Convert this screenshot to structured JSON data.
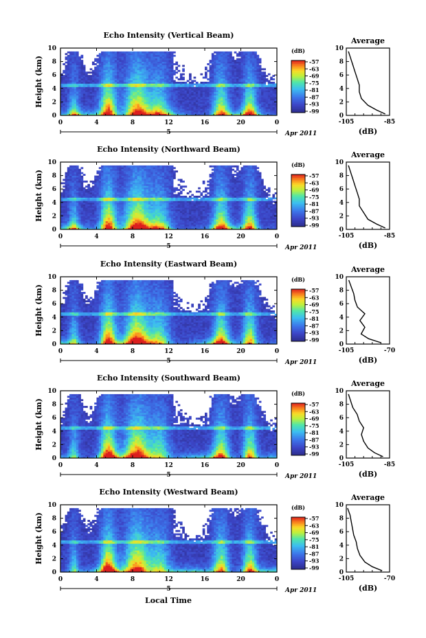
{
  "footer": {
    "xlabel": "Local Time"
  },
  "chart_data": [
    {
      "type": "heatmap",
      "title": "Echo Intensity (Vertical Beam)",
      "ylabel": "Height (km)",
      "x_ticks": [
        "0",
        "4",
        "8",
        "12",
        "16",
        "20",
        "0"
      ],
      "y_ticks": [
        "0",
        "2",
        "4",
        "6",
        "8",
        "10"
      ],
      "xlim": [
        0,
        24
      ],
      "ylim": [
        0,
        10
      ],
      "date_tick": "5",
      "date_label": "Apr 2011",
      "colorbar": {
        "unit": "(dB)",
        "ticks": [
          "-57",
          "-63",
          "-69",
          "-75",
          "-81",
          "-87",
          "-93",
          "-99"
        ]
      },
      "profile": {
        "title": "Average",
        "xlabel": "(dB)",
        "x_ticks": [
          "-105",
          "-85"
        ],
        "xlim": [
          -105,
          -85
        ],
        "heights": [
          0.2,
          0.8,
          1.5,
          2.5,
          3.5,
          4.5,
          5.5,
          6.5,
          7.5,
          8.5,
          9.5
        ],
        "values": [
          -87,
          -91,
          -95,
          -98,
          -99,
          -99,
          -100,
          -101,
          -102,
          -103,
          -104
        ]
      }
    },
    {
      "type": "heatmap",
      "title": "Echo Intensity (Northward Beam)",
      "ylabel": "Height (km)",
      "x_ticks": [
        "0",
        "4",
        "8",
        "12",
        "16",
        "20",
        "0"
      ],
      "y_ticks": [
        "0",
        "2",
        "4",
        "6",
        "8",
        "10"
      ],
      "xlim": [
        0,
        24
      ],
      "ylim": [
        0,
        10
      ],
      "date_tick": "5",
      "date_label": "Apr 2011",
      "colorbar": {
        "unit": "(dB)",
        "ticks": [
          "-57",
          "-63",
          "-69",
          "-75",
          "-81",
          "-87",
          "-93",
          "-99"
        ]
      },
      "profile": {
        "title": "Average",
        "xlabel": "(dB)",
        "x_ticks": [
          "-105",
          "-85"
        ],
        "xlim": [
          -105,
          -85
        ],
        "heights": [
          0.2,
          0.8,
          1.5,
          2.5,
          3.5,
          4.5,
          5.5,
          6.5,
          7.5,
          8.5,
          9.5
        ],
        "values": [
          -87,
          -91,
          -95,
          -97,
          -99,
          -99,
          -100,
          -101,
          -102,
          -103,
          -104
        ]
      }
    },
    {
      "type": "heatmap",
      "title": "Echo Intensity (Eastward Beam)",
      "ylabel": "Height (km)",
      "x_ticks": [
        "0",
        "4",
        "8",
        "12",
        "16",
        "20",
        "0"
      ],
      "y_ticks": [
        "0",
        "2",
        "4",
        "6",
        "8",
        "10"
      ],
      "xlim": [
        0,
        24
      ],
      "ylim": [
        0,
        10
      ],
      "date_tick": "5",
      "date_label": "Apr 2011",
      "colorbar": {
        "unit": "(dB)",
        "ticks": [
          "-57",
          "-63",
          "-69",
          "-75",
          "-81",
          "-87",
          "-93",
          "-99"
        ]
      },
      "profile": {
        "title": "Average",
        "xlabel": "(dB)",
        "x_ticks": [
          "-105",
          "-70"
        ],
        "xlim": [
          -105,
          -70
        ],
        "heights": [
          0.2,
          0.8,
          1.5,
          2.5,
          3.5,
          4.5,
          5.5,
          6.5,
          7.5,
          8.5,
          9.5
        ],
        "values": [
          -77,
          -87,
          -93,
          -90,
          -94,
          -90,
          -96,
          -98,
          -99,
          -101,
          -103
        ]
      }
    },
    {
      "type": "heatmap",
      "title": "Echo Intensity (Southward Beam)",
      "ylabel": "Height (km)",
      "x_ticks": [
        "0",
        "4",
        "8",
        "12",
        "16",
        "20",
        "0"
      ],
      "y_ticks": [
        "0",
        "2",
        "4",
        "6",
        "8",
        "10"
      ],
      "xlim": [
        0,
        24
      ],
      "ylim": [
        0,
        10
      ],
      "date_tick": "5",
      "date_label": "Apr 2011",
      "colorbar": {
        "unit": "(dB)",
        "ticks": [
          "-57",
          "-63",
          "-69",
          "-75",
          "-81",
          "-87",
          "-93",
          "-99"
        ]
      },
      "profile": {
        "title": "Average",
        "xlabel": "(dB)",
        "x_ticks": [
          "-105",
          "-85"
        ],
        "xlim": [
          -105,
          -85
        ],
        "heights": [
          0.2,
          0.8,
          1.5,
          2.5,
          3.5,
          4.5,
          5.5,
          6.5,
          7.5,
          8.5,
          9.5
        ],
        "values": [
          -88,
          -92,
          -95,
          -97,
          -98,
          -97,
          -99,
          -100,
          -102,
          -103,
          -104
        ]
      }
    },
    {
      "type": "heatmap",
      "title": "Echo Intensity (Westward Beam)",
      "ylabel": "Height (km)",
      "x_ticks": [
        "0",
        "4",
        "8",
        "12",
        "16",
        "20",
        "0"
      ],
      "y_ticks": [
        "0",
        "2",
        "4",
        "6",
        "8",
        "10"
      ],
      "xlim": [
        0,
        24
      ],
      "ylim": [
        0,
        10
      ],
      "date_tick": "5",
      "date_label": "Apr 2011",
      "colorbar": {
        "unit": "(dB)",
        "ticks": [
          "-57",
          "-63",
          "-69",
          "-75",
          "-81",
          "-87",
          "-93",
          "-99"
        ]
      },
      "profile": {
        "title": "Average",
        "xlabel": "(dB)",
        "x_ticks": [
          "-105",
          "-70"
        ],
        "xlim": [
          -105,
          -70
        ],
        "heights": [
          0.2,
          0.8,
          1.5,
          2.5,
          3.5,
          4.5,
          5.5,
          6.5,
          7.5,
          8.5,
          9.5
        ],
        "values": [
          -76,
          -84,
          -90,
          -94,
          -96,
          -97,
          -99,
          -100,
          -101,
          -102,
          -104
        ]
      }
    }
  ]
}
